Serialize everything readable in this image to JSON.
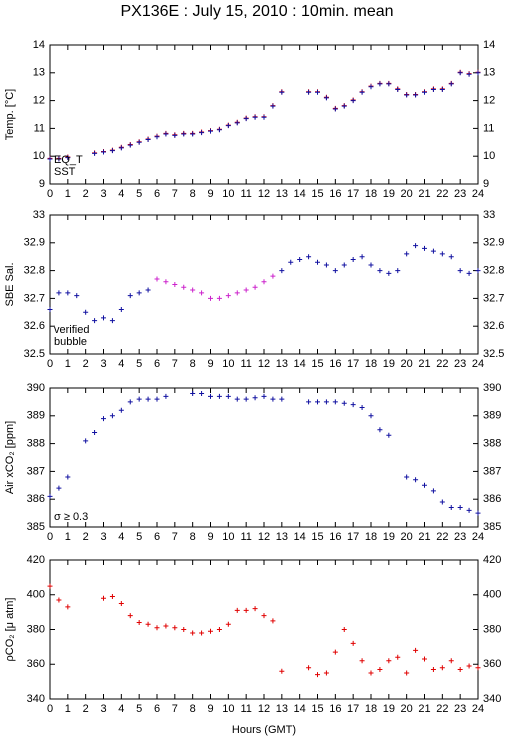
{
  "title": "PX136E : July 15, 2010 : 10min. mean",
  "xlabel": "Hours (GMT)",
  "chart_data": [
    {
      "type": "scatter",
      "ylabel": "Temp. [°C]",
      "xlim": [
        0,
        24
      ],
      "xticks": [
        0,
        1,
        2,
        3,
        4,
        5,
        6,
        7,
        8,
        9,
        10,
        11,
        12,
        13,
        14,
        15,
        16,
        17,
        18,
        19,
        20,
        21,
        22,
        23,
        24
      ],
      "ylim": [
        9,
        14
      ],
      "yticks": [
        9,
        10,
        11,
        12,
        13,
        14
      ],
      "x": [
        0,
        0.5,
        1,
        1.5,
        2,
        2.5,
        3,
        3.5,
        4,
        4.5,
        5,
        5.5,
        6,
        6.5,
        7,
        7.5,
        8,
        8.5,
        9,
        9.5,
        10,
        10.5,
        11,
        11.5,
        12,
        12.5,
        13,
        13.5,
        14,
        14.5,
        15,
        15.5,
        16,
        16.5,
        17,
        17.5,
        18,
        18.5,
        19,
        19.5,
        20,
        20.5,
        21,
        21.5,
        22,
        22.5,
        23,
        23.5,
        24
      ],
      "series": [
        {
          "name": "EQ_T",
          "color": "#e00000",
          "values": [
            9.92,
            9.92,
            9.97,
            null,
            null,
            10.12,
            10.17,
            10.22,
            10.32,
            10.42,
            10.52,
            10.62,
            10.72,
            10.82,
            10.77,
            10.82,
            10.82,
            10.87,
            10.92,
            10.97,
            11.12,
            11.22,
            11.37,
            11.42,
            11.42,
            11.82,
            12.32,
            null,
            null,
            12.32,
            12.32,
            12.12,
            11.72,
            11.82,
            12.02,
            12.32,
            12.52,
            12.62,
            12.62,
            12.42,
            12.22,
            12.22,
            12.32,
            12.42,
            12.42,
            12.62,
            13.02,
            12.97,
            13.02
          ]
        },
        {
          "name": "SST",
          "color": "#1010a0",
          "values": [
            9.9,
            9.9,
            9.95,
            null,
            null,
            10.1,
            10.15,
            10.2,
            10.3,
            10.4,
            10.5,
            10.6,
            10.7,
            10.8,
            10.75,
            10.8,
            10.8,
            10.85,
            10.9,
            10.95,
            11.1,
            11.2,
            11.35,
            11.4,
            11.4,
            11.8,
            12.3,
            null,
            null,
            12.3,
            12.3,
            12.1,
            11.7,
            11.8,
            12.0,
            12.3,
            12.5,
            12.6,
            12.6,
            12.4,
            12.2,
            12.2,
            12.3,
            12.4,
            12.4,
            12.6,
            13.0,
            12.95,
            13.0
          ]
        }
      ]
    },
    {
      "type": "scatter",
      "ylabel": "SBE Sal.",
      "xlim": [
        0,
        24
      ],
      "xticks": [
        0,
        1,
        2,
        3,
        4,
        5,
        6,
        7,
        8,
        9,
        10,
        11,
        12,
        13,
        14,
        15,
        16,
        17,
        18,
        19,
        20,
        21,
        22,
        23,
        24
      ],
      "ylim": [
        32.5,
        33
      ],
      "yticks": [
        32.5,
        32.6,
        32.7,
        32.8,
        32.9,
        33
      ],
      "x": [
        0,
        0.5,
        1,
        1.5,
        2,
        2.5,
        3,
        3.5,
        4,
        4.5,
        5,
        5.5,
        6,
        6.5,
        7,
        7.5,
        8,
        8.5,
        9,
        9.5,
        10,
        10.5,
        11,
        11.5,
        12,
        12.5,
        13,
        13.5,
        14,
        14.5,
        15,
        15.5,
        16,
        16.5,
        17,
        17.5,
        18,
        18.5,
        19,
        19.5,
        20,
        20.5,
        21,
        21.5,
        22,
        22.5,
        23,
        23.5,
        24
      ],
      "series": [
        {
          "name": "verified",
          "color": "#1010a0",
          "values": [
            32.66,
            32.72,
            32.72,
            32.71,
            32.65,
            32.62,
            32.63,
            32.62,
            32.66,
            32.71,
            32.72,
            32.73,
            null,
            null,
            null,
            null,
            null,
            null,
            null,
            null,
            null,
            null,
            null,
            null,
            null,
            null,
            32.8,
            32.83,
            32.84,
            32.85,
            32.83,
            32.82,
            32.8,
            32.82,
            32.84,
            32.85,
            32.82,
            32.8,
            32.79,
            32.8,
            32.86,
            32.89,
            32.88,
            32.87,
            32.86,
            32.85,
            32.8,
            32.79,
            32.8
          ]
        },
        {
          "name": "bubble",
          "color": "#cc22cc",
          "values": [
            null,
            null,
            null,
            null,
            null,
            null,
            null,
            null,
            null,
            null,
            null,
            null,
            32.77,
            32.76,
            32.75,
            32.74,
            32.73,
            32.72,
            32.7,
            32.7,
            32.71,
            32.72,
            32.73,
            32.74,
            32.76,
            32.78,
            null,
            null,
            null,
            null,
            null,
            null,
            null,
            null,
            null,
            null,
            null,
            null,
            null,
            null,
            null,
            null,
            null,
            null,
            null,
            null,
            null,
            null,
            null
          ]
        }
      ]
    },
    {
      "type": "scatter",
      "ylabel": "Air xCO₂ [ppm]",
      "annotation": "σ ≥ 0.3",
      "annotation_color": "#cc22cc",
      "xlim": [
        0,
        24
      ],
      "xticks": [
        0,
        1,
        2,
        3,
        4,
        5,
        6,
        7,
        8,
        9,
        10,
        11,
        12,
        13,
        14,
        15,
        16,
        17,
        18,
        19,
        20,
        21,
        22,
        23,
        24
      ],
      "ylim": [
        385,
        390
      ],
      "yticks": [
        385,
        386,
        387,
        388,
        389,
        390
      ],
      "x": [
        0,
        0.5,
        1,
        1.5,
        2,
        2.5,
        3,
        3.5,
        4,
        4.5,
        5,
        5.5,
        6,
        6.5,
        7,
        7.5,
        8,
        8.5,
        9,
        9.5,
        10,
        10.5,
        11,
        11.5,
        12,
        12.5,
        13,
        13.5,
        14,
        14.5,
        15,
        15.5,
        16,
        16.5,
        17,
        17.5,
        18,
        18.5,
        19,
        19.5,
        20,
        20.5,
        21,
        21.5,
        22,
        22.5,
        23,
        23.5,
        24
      ],
      "series": [
        {
          "color": "#1010a0",
          "values": [
            386.1,
            386.4,
            386.8,
            null,
            388.1,
            388.4,
            388.9,
            389.0,
            389.2,
            389.5,
            389.6,
            389.6,
            389.6,
            389.7,
            null,
            null,
            389.8,
            389.8,
            389.7,
            389.7,
            389.7,
            389.6,
            389.6,
            389.65,
            389.7,
            389.6,
            389.6,
            null,
            null,
            389.5,
            389.5,
            389.5,
            389.5,
            389.45,
            389.4,
            389.3,
            389.0,
            388.5,
            388.3,
            null,
            386.8,
            386.7,
            386.5,
            386.3,
            385.9,
            385.7,
            385.7,
            385.6,
            385.5
          ]
        }
      ]
    },
    {
      "type": "scatter",
      "ylabel": "ρCO₂ [μ atm]",
      "xlim": [
        0,
        24
      ],
      "xticks": [
        0,
        1,
        2,
        3,
        4,
        5,
        6,
        7,
        8,
        9,
        10,
        11,
        12,
        13,
        14,
        15,
        16,
        17,
        18,
        19,
        20,
        21,
        22,
        23,
        24
      ],
      "ylim": [
        340,
        420
      ],
      "yticks": [
        340,
        360,
        380,
        400,
        420
      ],
      "x": [
        0,
        0.5,
        1,
        1.5,
        2,
        2.5,
        3,
        3.5,
        4,
        4.5,
        5,
        5.5,
        6,
        6.5,
        7,
        7.5,
        8,
        8.5,
        9,
        9.5,
        10,
        10.5,
        11,
        11.5,
        12,
        12.5,
        13,
        13.5,
        14,
        14.5,
        15,
        15.5,
        16,
        16.5,
        17,
        17.5,
        18,
        18.5,
        19,
        19.5,
        20,
        20.5,
        21,
        21.5,
        22,
        22.5,
        23,
        23.5,
        24
      ],
      "series": [
        {
          "color": "#e00000",
          "values": [
            405,
            397,
            393,
            null,
            null,
            null,
            398,
            399,
            395,
            388,
            384,
            383,
            381,
            382,
            381,
            380,
            378,
            378,
            379,
            380,
            383,
            391,
            391,
            392,
            388,
            385,
            356,
            null,
            null,
            358,
            354,
            355,
            367,
            380,
            372,
            362,
            355,
            357,
            362,
            364,
            355,
            368,
            363,
            357,
            358,
            362,
            357,
            359,
            358
          ]
        }
      ]
    }
  ]
}
